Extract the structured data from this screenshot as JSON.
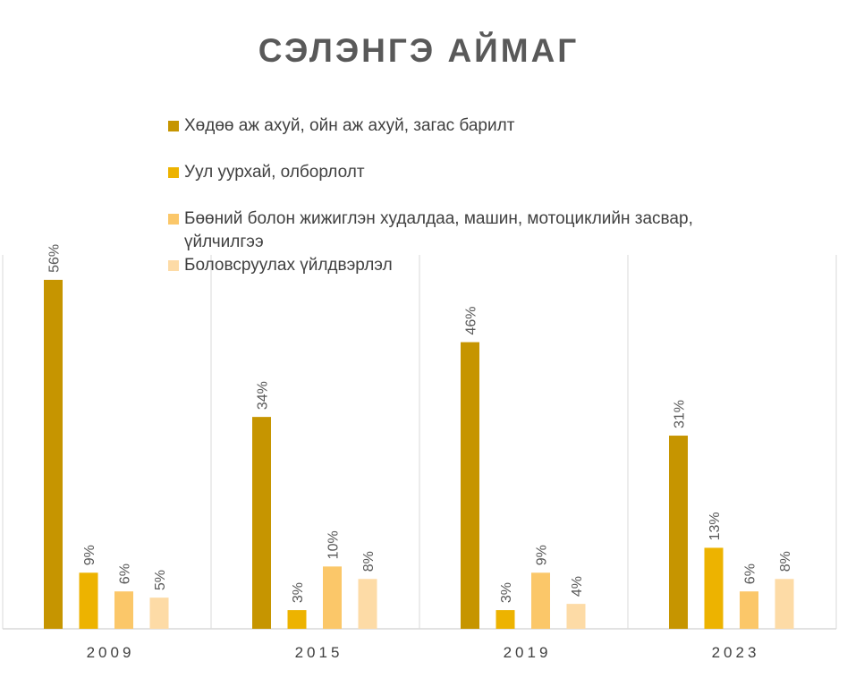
{
  "chart_data": {
    "type": "bar",
    "title": "СЭЛЭНГЭ АЙМАГ",
    "categories": [
      "2009",
      "2015",
      "2019",
      "2023"
    ],
    "series": [
      {
        "name": "Хөдөө аж ахуй, ойн аж ахуй, загас барилт",
        "color": "#C69500",
        "values": [
          56,
          34,
          46,
          31
        ],
        "labels": [
          "56%",
          "34%",
          "46%",
          "31%"
        ]
      },
      {
        "name": "Уул уурхай, олборлолт",
        "color": "#EDB300",
        "values": [
          9,
          3,
          3,
          13
        ],
        "labels": [
          "9%",
          "3%",
          "3%",
          "13%"
        ]
      },
      {
        "name": "Бөөний болон жижиглэн худалдаа, машин, мотоциклийн засвар, үйлчилгээ",
        "color": "#FBC769",
        "values": [
          6,
          10,
          9,
          6
        ],
        "labels": [
          "6%",
          "10%",
          "9%",
          "6%"
        ]
      },
      {
        "name": "Боловсруулах үйлдвэрлэл",
        "color": "#FDDBA6",
        "values": [
          5,
          8,
          4,
          8
        ],
        "labels": [
          "5%",
          "8%",
          "4%",
          "8%"
        ]
      }
    ],
    "ylim": [
      0,
      60
    ],
    "legend": "top",
    "grid": "vertical category separators"
  }
}
